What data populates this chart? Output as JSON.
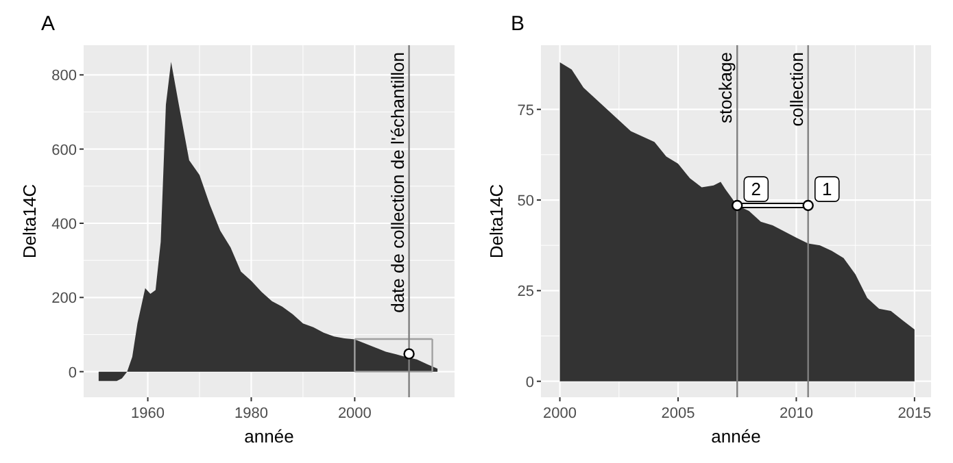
{
  "chart_data": [
    {
      "type": "area",
      "title": "A",
      "xlabel": "année",
      "ylabel": "Delta14C",
      "xlim": [
        1947.6,
        2019.3
      ],
      "ylim": [
        -69,
        880
      ],
      "xticks": [
        1960,
        1980,
        2000
      ],
      "yticks": [
        0,
        200,
        400,
        600,
        800
      ],
      "grid": true,
      "ref_lines": [
        {
          "axis": "x",
          "value": 2010.5,
          "label": "date de collection de l'échantillon",
          "color": "#7f7f7f"
        }
      ],
      "series": [
        {
          "type": "area",
          "color": "#333333",
          "x": [
            1950.5,
            1954,
            1955,
            1956,
            1957,
            1958,
            1959.5,
            1960.5,
            1961.5,
            1962.5,
            1963.5,
            1964.5,
            1966,
            1968,
            1970,
            1972,
            1974,
            1976,
            1978,
            1980,
            1982,
            1984,
            1986,
            1988,
            1990,
            1992,
            1994,
            1996,
            1998,
            2000,
            2002,
            2004,
            2006,
            2008,
            2010,
            2012,
            2014,
            2015,
            2016
          ],
          "values": [
            -25,
            -25,
            -18,
            0,
            40,
            130,
            225,
            210,
            220,
            350,
            720,
            835,
            720,
            570,
            530,
            450,
            380,
            335,
            270,
            245,
            215,
            190,
            175,
            155,
            130,
            120,
            105,
            95,
            90,
            87,
            76,
            65,
            54,
            47,
            39,
            33,
            20,
            14,
            8
          ]
        },
        {
          "type": "scatter",
          "color": "#ffffff",
          "marker": "circle",
          "x": [
            2010.5
          ],
          "values": [
            48
          ]
        }
      ]
    },
    {
      "type": "area",
      "title": "B",
      "xlabel": "année",
      "ylabel": "Delta14C",
      "xlim": [
        1999.2,
        2015.7
      ],
      "ylim": [
        -4.4,
        92.7
      ],
      "xticks": [
        2000,
        2005,
        2010,
        2015
      ],
      "yticks": [
        0,
        25,
        50,
        75
      ],
      "grid": true,
      "ref_lines": [
        {
          "axis": "x",
          "value": 2007.5,
          "label": "stockage",
          "color": "#7f7f7f"
        },
        {
          "axis": "x",
          "value": 2010.5,
          "label": "collection",
          "color": "#7f7f7f"
        }
      ],
      "annotations": [
        {
          "text": "2",
          "x": 2008.3,
          "y": 53
        },
        {
          "text": "1",
          "x": 2011.3,
          "y": 53
        }
      ],
      "series": [
        {
          "type": "area",
          "color": "#333333",
          "x": [
            2000,
            2000.5,
            2001,
            2002,
            2003,
            2004,
            2004.5,
            2005,
            2005.5,
            2006,
            2006.5,
            2006.8,
            2007,
            2007.5,
            2008,
            2008.5,
            2009,
            2010,
            2010.5,
            2011,
            2011.5,
            2012,
            2012.5,
            2013,
            2013.5,
            2014,
            2014.5,
            2015
          ],
          "values": [
            88,
            86,
            81,
            75,
            69,
            66,
            62,
            60,
            56,
            53.5,
            54,
            55,
            53,
            48.5,
            47,
            44,
            43,
            39.6,
            38,
            37.5,
            36,
            34,
            29.5,
            23,
            20,
            19.4,
            16.8,
            14.3
          ]
        },
        {
          "type": "line",
          "color": "#ffffff",
          "marker": "circle",
          "x": [
            2007.5,
            2010.5
          ],
          "values": [
            48.5,
            48.5
          ]
        }
      ]
    }
  ]
}
